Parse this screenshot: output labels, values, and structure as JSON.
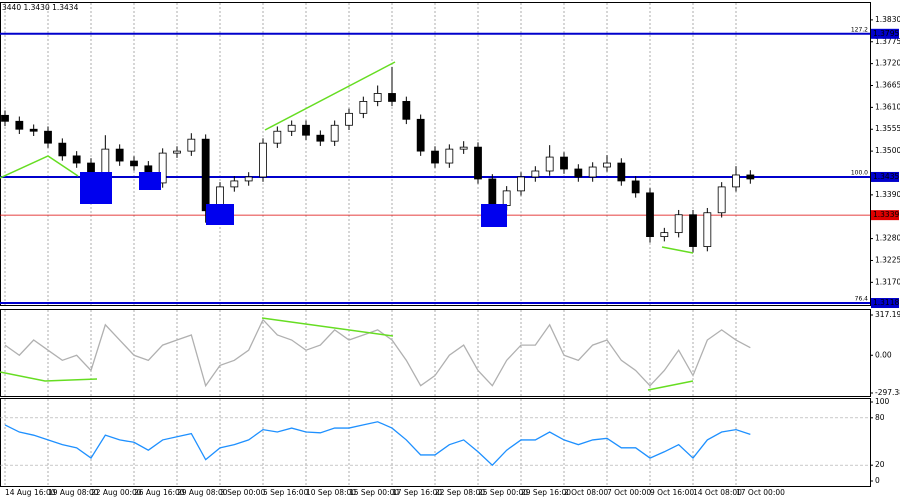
{
  "chart_data": [
    {
      "type": "candlestick",
      "header": "3440 1.3430 1.3434",
      "categories": [
        "14 Aug 16:00",
        null,
        null,
        "19 Aug 08:00",
        null,
        null,
        "22 Aug 00:00",
        null,
        null,
        "26 Aug 16:00",
        null,
        null,
        "29 Aug 08:00",
        null,
        null,
        "3 Sep 00:00",
        null,
        null,
        "5 Sep 16:00",
        null,
        null,
        "10 Sep 08:00",
        null,
        null,
        "15 Sep 00:00",
        null,
        null,
        "17 Sep 16:00",
        null,
        null,
        "22 Sep 08:00",
        null,
        null,
        "25 Sep 00:00",
        null,
        null,
        "29 Sep 16:00",
        null,
        null,
        "2 Oct 08:00",
        null,
        null,
        "7 Oct 00:00",
        null,
        null,
        "9 Oct 16:00",
        null,
        null,
        "14 Oct 08:00",
        null,
        null,
        "17 Oct 00:00",
        null
      ],
      "open": [
        1.359,
        1.3575,
        1.3555,
        1.355,
        1.352,
        1.3488,
        1.347,
        1.3405,
        1.3505,
        1.3475,
        1.3463,
        1.342,
        1.3495,
        1.35,
        1.353,
        1.335,
        1.341,
        1.3425,
        1.3435,
        1.352,
        1.355,
        1.3565,
        1.354,
        1.3525,
        1.3565,
        1.3595,
        1.3625,
        1.3645,
        1.3625,
        1.358,
        1.35,
        1.347,
        1.3505,
        1.351,
        1.343,
        1.3363,
        1.34,
        1.3435,
        1.345,
        1.3485,
        1.3455,
        1.3435,
        1.346,
        1.347,
        1.3425,
        1.3395,
        1.3285,
        1.3295,
        1.334,
        1.326,
        1.3345,
        1.341,
        1.344
      ],
      "high": [
        1.3602,
        1.3587,
        1.3567,
        1.3562,
        1.3532,
        1.35,
        1.3482,
        1.354,
        1.3517,
        1.3487,
        1.3475,
        1.3507,
        1.3512,
        1.3545,
        1.3542,
        1.3422,
        1.3437,
        1.3447,
        1.3532,
        1.3562,
        1.3577,
        1.3577,
        1.3552,
        1.3577,
        1.3607,
        1.3637,
        1.3665,
        1.3712,
        1.3637,
        1.3592,
        1.3512,
        1.3517,
        1.3525,
        1.3522,
        1.3442,
        1.3412,
        1.3447,
        1.3462,
        1.3515,
        1.3497,
        1.3467,
        1.3472,
        1.349,
        1.3482,
        1.3437,
        1.3407,
        1.3307,
        1.3352,
        1.3352,
        1.3357,
        1.3422,
        1.3462,
        1.3452
      ],
      "low": [
        1.3563,
        1.3543,
        1.3538,
        1.3508,
        1.3476,
        1.3458,
        1.3378,
        1.3393,
        1.3463,
        1.3451,
        1.3405,
        1.3408,
        1.3483,
        1.3488,
        1.332,
        1.3338,
        1.3398,
        1.3413,
        1.3423,
        1.3508,
        1.3538,
        1.3528,
        1.3513,
        1.3513,
        1.3553,
        1.3583,
        1.3613,
        1.3613,
        1.3568,
        1.3488,
        1.3458,
        1.3458,
        1.3493,
        1.3418,
        1.334,
        1.3351,
        1.3388,
        1.3423,
        1.3438,
        1.3443,
        1.3423,
        1.3423,
        1.3448,
        1.3413,
        1.3383,
        1.327,
        1.3273,
        1.3283,
        1.3245,
        1.3248,
        1.3333,
        1.3398,
        1.3418
      ],
      "close": [
        1.3575,
        1.3555,
        1.355,
        1.352,
        1.3488,
        1.347,
        1.3405,
        1.3505,
        1.3475,
        1.3463,
        1.342,
        1.3495,
        1.35,
        1.353,
        1.335,
        1.341,
        1.3425,
        1.3435,
        1.352,
        1.355,
        1.3565,
        1.354,
        1.3525,
        1.3565,
        1.3595,
        1.3625,
        1.3645,
        1.3625,
        1.358,
        1.35,
        1.347,
        1.3505,
        1.351,
        1.343,
        1.3363,
        1.34,
        1.3435,
        1.345,
        1.3485,
        1.3455,
        1.3435,
        1.346,
        1.347,
        1.3425,
        1.3395,
        1.3285,
        1.3295,
        1.334,
        1.326,
        1.3345,
        1.341,
        1.344,
        1.343
      ],
      "ylim": [
        1.3113,
        1.3875
      ],
      "yticks": [
        {
          "value": 1.383,
          "label": "1.3830"
        },
        1.3775,
        {
          "value": 1.372,
          "label": "1.3720"
        },
        1.3665,
        {
          "value": 1.361,
          "label": "1.3610"
        },
        1.3555,
        {
          "value": 1.35,
          "label": "1.3500"
        },
        {
          "value": 1.339,
          "label": "1.3390"
        },
        {
          "value": 1.328,
          "label": "1.3280"
        },
        1.3225,
        {
          "value": 1.317,
          "label": "1.3170"
        }
      ],
      "levels": [
        {
          "name": "127.2",
          "value": 1.3795,
          "color": "#0000cc"
        },
        {
          "name": "100.0",
          "value": 1.3435,
          "color": "#0000cc"
        },
        {
          "value": 1.3339,
          "color": "#dd0000"
        },
        {
          "name": "76.4",
          "value": 1.3118,
          "color": "#0000cc"
        }
      ],
      "grid": true
    },
    {
      "type": "line",
      "series": [
        {
          "color": "#b0b0b0",
          "values": [
            80,
            0,
            120,
            40,
            -40,
            0,
            -120,
            240,
            120,
            0,
            -40,
            80,
            120,
            160,
            -240,
            -80,
            -40,
            40,
            280,
            160,
            120,
            40,
            80,
            200,
            120,
            160,
            200,
            120,
            -40,
            -240,
            -160,
            0,
            80,
            -120,
            -240,
            -40,
            80,
            80,
            240,
            0,
            -40,
            80,
            120,
            -40,
            -120,
            -240,
            -120,
            40,
            -160,
            120,
            200,
            120,
            60
          ]
        }
      ],
      "ylim": [
        -297.386,
        317.1935
      ],
      "yticks": [
        317.1935,
        {
          "value": 0,
          "label": "0.00"
        },
        -297.386
      ]
    },
    {
      "type": "line",
      "series": [
        {
          "color": "#1e90ff",
          "values": [
            71,
            62,
            58,
            52,
            46,
            42,
            29,
            58,
            52,
            49,
            39,
            52,
            56,
            60,
            27,
            42,
            46,
            52,
            65,
            62,
            67,
            62,
            61,
            67,
            67,
            71,
            75,
            67,
            52,
            33,
            33,
            46,
            52,
            37,
            20,
            39,
            52,
            52,
            62,
            52,
            46,
            52,
            54,
            42,
            42,
            29,
            37,
            46,
            29,
            52,
            62,
            65,
            59
          ]
        }
      ],
      "ylim": [
        0,
        100
      ],
      "yticks": [
        100,
        80,
        20,
        0
      ],
      "dashed": [
        80,
        20
      ]
    }
  ]
}
